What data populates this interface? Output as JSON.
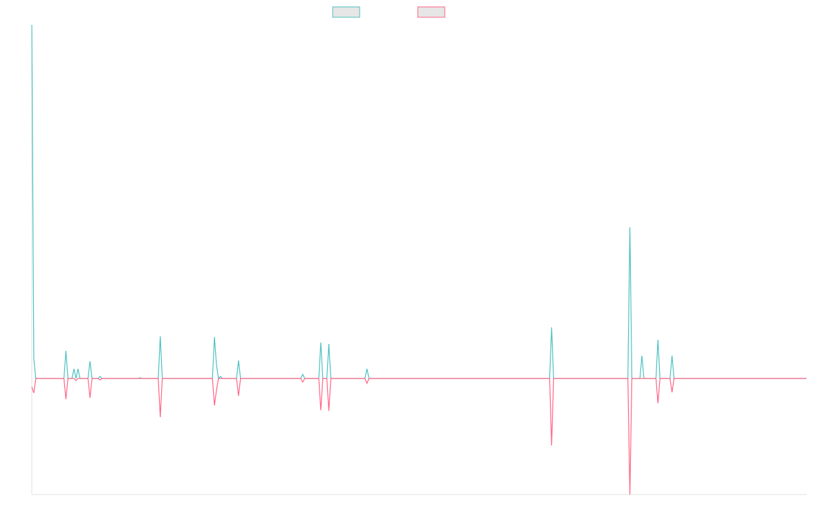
{
  "chart_data": {
    "type": "line",
    "x": [
      0,
      1,
      2,
      16,
      17,
      18,
      20,
      21,
      22,
      23,
      24,
      28,
      29,
      30,
      33,
      34,
      35,
      53,
      54,
      55,
      63,
      64,
      65,
      90,
      91,
      92,
      93,
      94,
      95,
      102,
      103,
      104,
      134,
      135,
      136,
      143,
      144,
      145,
      147,
      148,
      149,
      166,
      167,
      168,
      258,
      259,
      260,
      297,
      298,
      299,
      303,
      304,
      305,
      311,
      312,
      313,
      318,
      319,
      320,
      386
    ],
    "series": [
      {
        "color": "#4bc0c0",
        "values": [
          51.2,
          2.8,
          0,
          0,
          4.0,
          0,
          0,
          1.4,
          0,
          1.4,
          0,
          0,
          2.5,
          0,
          0,
          0.3,
          0,
          0,
          0.1,
          0,
          0,
          6.1,
          0,
          0,
          6.0,
          2.0,
          0,
          0.3,
          0,
          0,
          2.6,
          0,
          0,
          0.6,
          0,
          0,
          5.2,
          0,
          0,
          5.0,
          0,
          0,
          1.4,
          0,
          0,
          7.4,
          0,
          0,
          21.9,
          0,
          0,
          3.3,
          0,
          0,
          5.6,
          0,
          0,
          3.3,
          0,
          0
        ]
      },
      {
        "color": "#ff6384",
        "values": [
          -1.2,
          -2.1,
          0,
          0,
          -3.0,
          0,
          0,
          0,
          -0.3,
          0,
          0,
          0,
          -2.8,
          0,
          0,
          -0.2,
          0,
          0,
          0,
          0,
          0,
          -5.6,
          0,
          0,
          -3.9,
          -1.7,
          0,
          0,
          0,
          0,
          -2.5,
          0,
          0,
          -0.5,
          0,
          0,
          -4.6,
          0,
          0,
          -4.7,
          0,
          0,
          -0.7,
          0,
          0,
          -9.7,
          0,
          0,
          -16.8,
          0,
          0,
          0,
          0,
          0,
          -3.6,
          0,
          0,
          -2.0,
          0,
          0
        ]
      }
    ],
    "xlim": [
      0,
      386
    ],
    "ylim": [
      -16.8,
      51.2
    ]
  }
}
